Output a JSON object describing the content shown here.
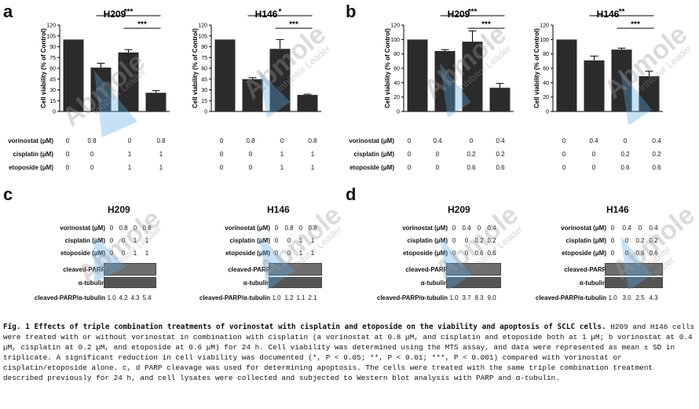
{
  "panels": {
    "a": {
      "label": "a"
    },
    "b": {
      "label": "b"
    },
    "c": {
      "label": "c"
    },
    "d": {
      "label": "d"
    }
  },
  "yaxis_label": "Cell viability (% of Control)",
  "row_labels": {
    "vorinostat": "vorinostat (μM)",
    "cisplatin": "cisplatin (μM)",
    "etoposide": "etoposide (μM)"
  },
  "chart_data": [
    {
      "type": "bar",
      "panel": "a",
      "title": "H209",
      "ylabel": "Cell viability (% of Control)",
      "ylim": [
        0,
        120
      ],
      "yticks": [
        "0",
        "15",
        "30",
        "45",
        "60",
        "75",
        "90",
        "105",
        "120"
      ],
      "values": [
        100,
        61,
        82,
        26
      ],
      "errors": [
        0,
        6,
        4,
        3
      ],
      "vorinostat": [
        "0",
        "0.8",
        "0",
        "0.8"
      ],
      "cisplatin": [
        "0",
        "0",
        "1",
        "1"
      ],
      "etoposide": [
        "0",
        "0",
        "1",
        "1"
      ],
      "significance": [
        {
          "from": 1,
          "to": 3,
          "label": "***"
        },
        {
          "from": 2,
          "to": 3,
          "label": "***"
        }
      ]
    },
    {
      "type": "bar",
      "panel": "a",
      "title": "H146",
      "ylabel": "Cell viability (% of Control)",
      "ylim": [
        0,
        120
      ],
      "yticks": [
        "0",
        "15",
        "30",
        "45",
        "60",
        "75",
        "90",
        "105",
        "120"
      ],
      "values": [
        100,
        45,
        87,
        23
      ],
      "errors": [
        0,
        2,
        13,
        1
      ],
      "vorinostat": [
        "0",
        "0.8",
        "0",
        "0.8"
      ],
      "cisplatin": [
        "0",
        "0",
        "1",
        "1"
      ],
      "etoposide": [
        "0",
        "0",
        "1",
        "1"
      ],
      "significance": [
        {
          "from": 1,
          "to": 3,
          "label": "*"
        },
        {
          "from": 2,
          "to": 3,
          "label": "***"
        }
      ]
    },
    {
      "type": "bar",
      "panel": "b",
      "title": "H209",
      "ylabel": "Cell viability (% of Control)",
      "ylim": [
        0,
        120
      ],
      "yticks": [
        "0",
        "20",
        "40",
        "60",
        "80",
        "100",
        "120"
      ],
      "values": [
        100,
        84,
        97,
        33
      ],
      "errors": [
        0,
        2,
        15,
        6
      ],
      "vorinostat": [
        "0",
        "0.4",
        "0",
        "0.4"
      ],
      "cisplatin": [
        "0",
        "0",
        "0.2",
        "0.2"
      ],
      "etoposide": [
        "0",
        "0",
        "0.6",
        "0.6"
      ],
      "significance": [
        {
          "from": 1,
          "to": 3,
          "label": "***"
        },
        {
          "from": 2,
          "to": 3,
          "label": "***"
        }
      ]
    },
    {
      "type": "bar",
      "panel": "b",
      "title": "H146",
      "ylabel": "Cell viability (% of Control)",
      "ylim": [
        0,
        120
      ],
      "yticks": [
        "0",
        "20",
        "40",
        "60",
        "80",
        "100",
        "120"
      ],
      "values": [
        100,
        71,
        86,
        49
      ],
      "errors": [
        0,
        6,
        2,
        7
      ],
      "vorinostat": [
        "0",
        "0.4",
        "0",
        "0.4"
      ],
      "cisplatin": [
        "0",
        "0",
        "0.2",
        "0.2"
      ],
      "etoposide": [
        "0",
        "0",
        "0.6",
        "0.6"
      ],
      "significance": [
        {
          "from": 1,
          "to": 3,
          "label": "**"
        },
        {
          "from": 2,
          "to": 3,
          "label": "***"
        }
      ]
    }
  ],
  "blots": [
    {
      "panel": "c",
      "title": "H209",
      "vorinostat": [
        "0",
        "0.8",
        "0",
        "0.8"
      ],
      "cisplatin": [
        "0",
        "0",
        "1",
        "1"
      ],
      "etoposide": [
        "0",
        "0",
        "1",
        "1"
      ],
      "ratio": [
        "1.0",
        "4.2",
        "4.3",
        "5.4"
      ]
    },
    {
      "panel": "c",
      "title": "H146",
      "vorinostat": [
        "0",
        "0.8",
        "0",
        "0.8"
      ],
      "cisplatin": [
        "0",
        "0",
        "1",
        "1"
      ],
      "etoposide": [
        "0",
        "0",
        "1",
        "1"
      ],
      "ratio": [
        "1.0",
        "1.2",
        "1.1",
        "2.1"
      ]
    },
    {
      "panel": "d",
      "title": "H209",
      "vorinostat": [
        "0",
        "0.4",
        "0",
        "0.4"
      ],
      "cisplatin": [
        "0",
        "0",
        "0.2",
        "0.2"
      ],
      "etoposide": [
        "0",
        "0",
        "0.6",
        "0.6"
      ],
      "ratio": [
        "1.0",
        "3.7",
        "8.3",
        "9.0"
      ]
    },
    {
      "panel": "d",
      "title": "H146",
      "vorinostat": [
        "0",
        "0.4",
        "0",
        "0.4"
      ],
      "cisplatin": [
        "0",
        "0",
        "0.2",
        "0.2"
      ],
      "etoposide": [
        "0",
        "0",
        "0.6",
        "0.6"
      ],
      "ratio": [
        "1.0",
        "3.0",
        "2.5",
        "4.3"
      ]
    }
  ],
  "blot_labels": {
    "vorinostat": "vorinostat (μM)",
    "cisplatin": "cisplatin (μM)",
    "etoposide": "etoposide (μM)",
    "cleaved_parp": "cleaved-PARP",
    "tubulin": "α-tubulin",
    "ratio": "cleaved-PARP/α-tubulin"
  },
  "watermark": {
    "brand": "Abmole",
    "tagline": "Inhibitor Leader"
  },
  "caption": {
    "bold": "Fig. 1 Effects of triple combination treatments of vorinostat with cisplatin and etoposide on the viability and apoptosis of SCLC cells.",
    "text": " H209 and H146 cells were treated with or without vorinostat in combination with cisplatin (a vorinostat at 0.8 μM, and cisplatin and etoposide both at 1 μM; b vorinostat at 0.4 μM, cisplatin at 0.2 μM, and etoposide at 0.6 μM) for 24 h. Cell viability was determined using the MTS assay, and data were represented as mean ± SD in triplicate. A significant reduction in cell viability was documented (*, P < 0.05; **, P < 0.01; ***, P < 0.001) compared with vorinostat or cisplatin/etoposide alone. c, d PARP cleavage was used for determining apoptosis. The cells were treated with the same triple combination treatment described previously for 24 h, and cell lysates were collected and subjected to Western blot analysis with PARP and α-tubulin."
  },
  "colors": {
    "bar": "#2b2b2b",
    "watermark": "#5aa9e6",
    "watermark_text": "#9a9a9a"
  }
}
